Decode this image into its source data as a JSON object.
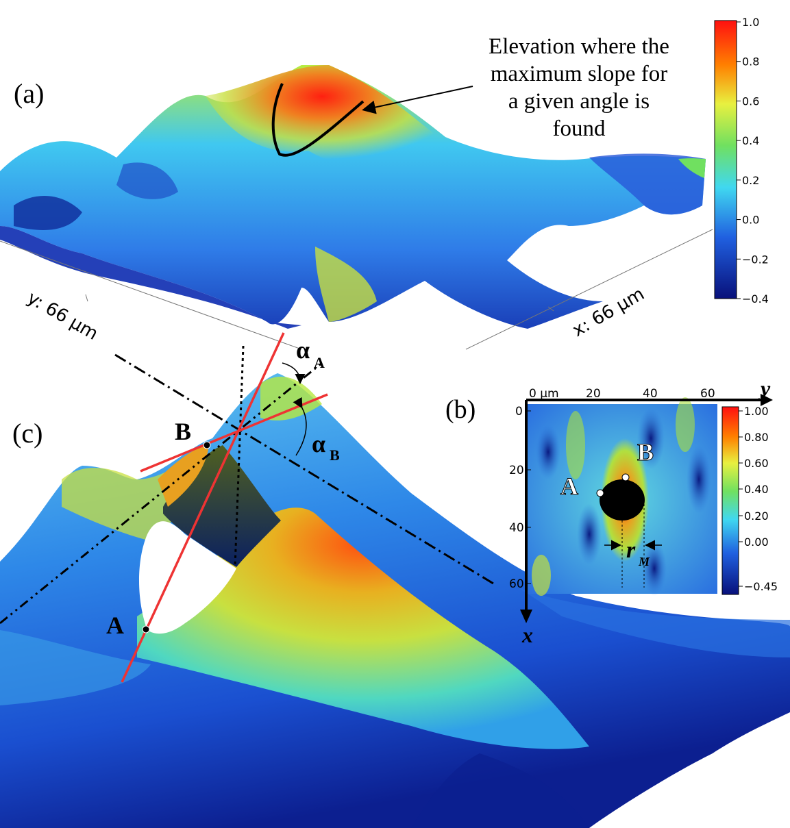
{
  "panel_a": {
    "label": "(a)",
    "annotation": [
      "Elevation where the",
      "maximum slope for",
      "a given angle is",
      "found"
    ],
    "axis_y": "y: 66 µm",
    "axis_x": "x: 66 µm",
    "colorbar_ticks": [
      "1.0",
      "0.8",
      "0.6",
      "0.4",
      "0.2",
      "0.0",
      "−0.2",
      "−0.4"
    ]
  },
  "panel_b": {
    "label": "(b)",
    "x_ticks": [
      "0 µm",
      "20",
      "40",
      "60"
    ],
    "y_ticks": [
      "0",
      "20",
      "40",
      "60"
    ],
    "axis_y_letter": "y",
    "axis_x_letter": "x",
    "point_a": "A",
    "point_b": "B",
    "radius_symbol": "r",
    "radius_sub": "M",
    "colorbar_ticks": [
      "1.00",
      "0.80",
      "0.60",
      "0.40",
      "0.20",
      "0.00",
      "−0.45"
    ]
  },
  "panel_c": {
    "label": "(c)",
    "point_a": "A",
    "point_b": "B",
    "alpha_symbol": "α",
    "alpha_a_sub": "A",
    "alpha_b_sub": "B"
  },
  "colors": {
    "red": "#ff1a1a",
    "orange": "#ff8c00",
    "yellow": "#e6f23a",
    "green": "#7ddc3a",
    "cyan": "#40e0f0",
    "blue": "#2a6fe0",
    "navy": "#0a1a80",
    "line_red": "#ee3333"
  }
}
